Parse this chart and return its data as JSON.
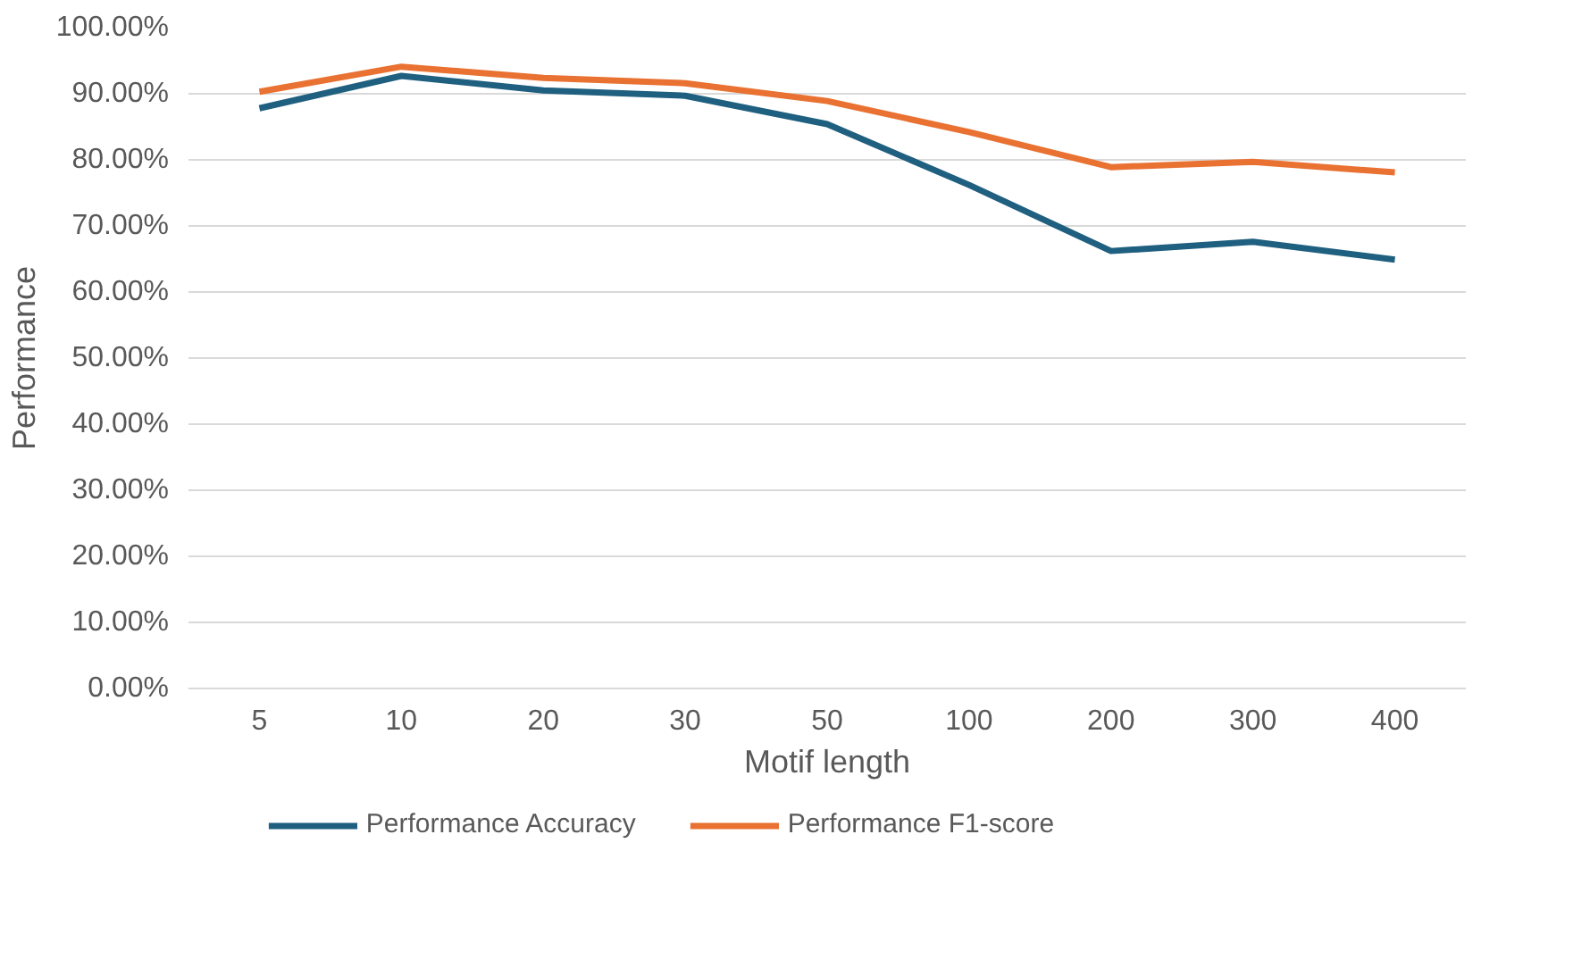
{
  "chart_data": {
    "type": "line",
    "xlabel": "Motif length",
    "ylabel": "Performance",
    "categories": [
      "5",
      "10",
      "20",
      "30",
      "50",
      "100",
      "200",
      "300",
      "400"
    ],
    "series": [
      {
        "name": "Performance Accuracy",
        "color": "#1f5f7f",
        "values": [
          87.8,
          92.7,
          90.5,
          89.7,
          85.4,
          76.2,
          66.2,
          67.6,
          64.9
        ]
      },
      {
        "name": "Performance F1-score",
        "color": "#e97132",
        "values": [
          90.3,
          94.1,
          92.4,
          91.6,
          88.9,
          84.2,
          78.9,
          79.7,
          78.1
        ]
      }
    ],
    "ylim": [
      0,
      100
    ],
    "yticks": [
      {
        "value": 0,
        "label": "0.00%"
      },
      {
        "value": 10,
        "label": "10.00%"
      },
      {
        "value": 20,
        "label": "20.00%"
      },
      {
        "value": 30,
        "label": "30.00%"
      },
      {
        "value": 40,
        "label": "40.00%"
      },
      {
        "value": 50,
        "label": "50.00%"
      },
      {
        "value": 60,
        "label": "60.00%"
      },
      {
        "value": 70,
        "label": "70.00%"
      },
      {
        "value": 80,
        "label": "80.00%"
      },
      {
        "value": 90,
        "label": "90.00%"
      },
      {
        "value": 100,
        "label": "100.00%"
      }
    ],
    "grid": "y",
    "legend": "bottom"
  }
}
